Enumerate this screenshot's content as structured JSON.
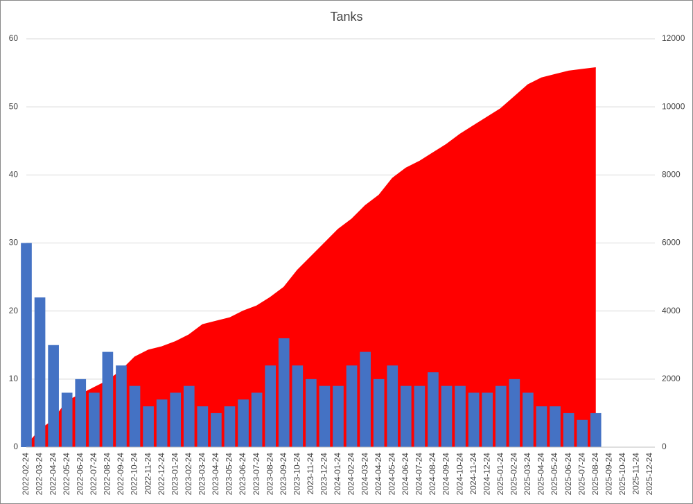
{
  "chart_data": {
    "type": "bar",
    "title": "Tanks",
    "categories": [
      "2022-02-24",
      "2022-03-24",
      "2022-04-24",
      "2022-05-24",
      "2022-06-24",
      "2022-07-24",
      "2022-08-24",
      "2022-09-24",
      "2022-10-24",
      "2022-11-24",
      "2022-12-24",
      "2023-01-24",
      "2023-02-24",
      "2023-03-24",
      "2023-04-24",
      "2023-05-24",
      "2023-06-24",
      "2023-07-24",
      "2023-08-24",
      "2023-09-24",
      "2023-10-24",
      "2023-11-24",
      "2023-12-24",
      "2024-01-24",
      "2024-02-24",
      "2024-03-24",
      "2024-04-24",
      "2024-05-24",
      "2024-06-24",
      "2024-07-24",
      "2024-08-24",
      "2024-09-24",
      "2024-10-24",
      "2024-11-24",
      "2024-12-24",
      "2025-01-24",
      "2025-02-24",
      "2025-03-24",
      "2025-04-24",
      "2025-05-24",
      "2025-06-24",
      "2025-07-24",
      "2025-08-24",
      "2025-09-24",
      "2025-10-24",
      "2025-11-24",
      "2025-12-24"
    ],
    "series": [
      {
        "color": "#ff0000",
        "axis": "y2",
        "values": [
          50,
          500,
          800,
          1350,
          1550,
          1750,
          1950,
          2250,
          2650,
          2850,
          2950,
          3100,
          3300,
          3600,
          3700,
          3800,
          4000,
          4150,
          4400,
          4700,
          5200,
          5600,
          6000,
          6400,
          6700,
          7100,
          7400,
          7900,
          8200,
          8400,
          8650,
          8900,
          9200,
          9450,
          9700,
          9950,
          10300,
          10650,
          10850,
          10950,
          11050,
          11100,
          11150,
          null,
          null,
          null,
          null
        ]
      },
      {
        "color": "#4472c4",
        "values": [
          30,
          22,
          15,
          8,
          10,
          8,
          14,
          12,
          9,
          6,
          7,
          8,
          9,
          6,
          5,
          6,
          7,
          8,
          12,
          16,
          12,
          10,
          9,
          9,
          12,
          14,
          10,
          12,
          9,
          9,
          11,
          9,
          9,
          8,
          8,
          9,
          10,
          8,
          6,
          6,
          5,
          4,
          5,
          null,
          null,
          null,
          null
        ]
      }
    ],
    "ylim": [
      0,
      60
    ],
    "yticks": [
      0,
      10,
      20,
      30,
      40,
      50,
      60
    ],
    "y2lim": [
      0,
      12000
    ],
    "y2ticks": [
      0,
      2000,
      4000,
      6000,
      8000,
      10000,
      12000
    ],
    "grid": true
  }
}
